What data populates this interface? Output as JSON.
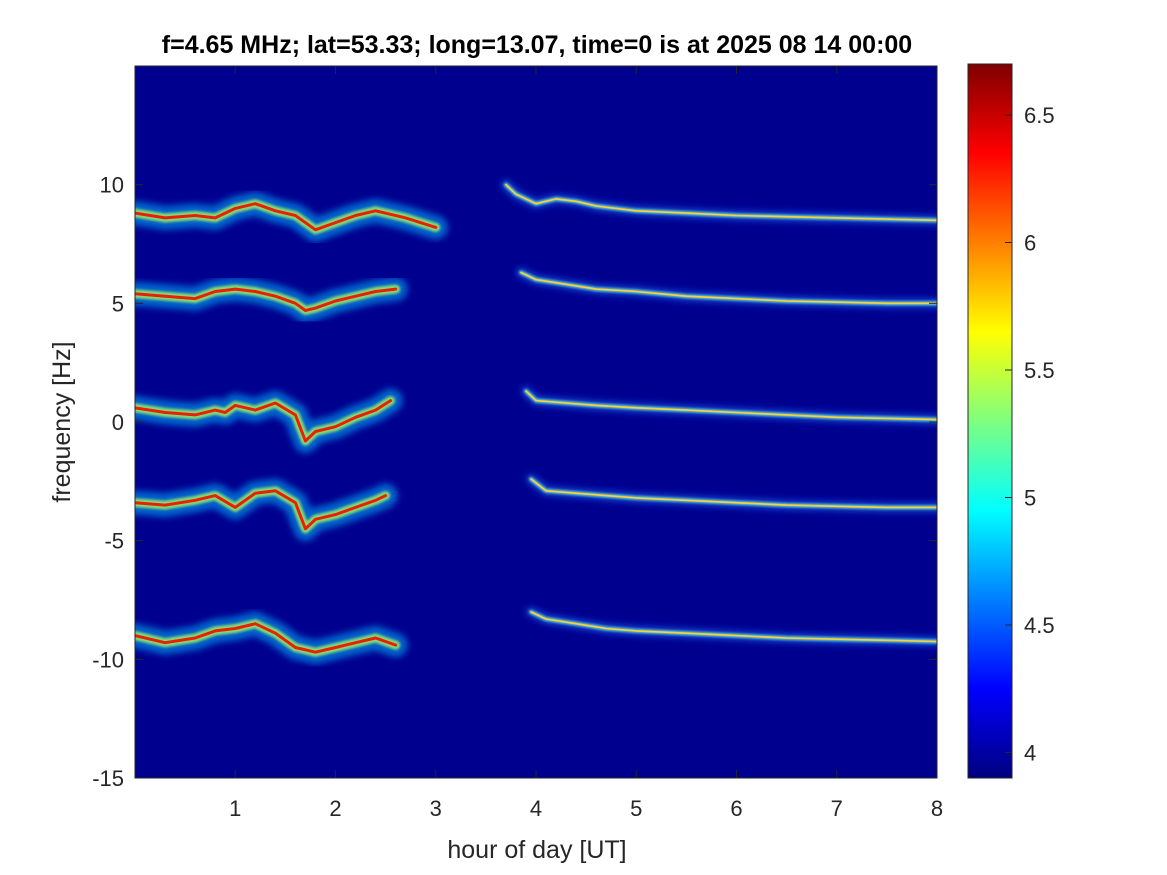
{
  "colors": {
    "background_low": "#00008f",
    "axes_box": "#262626",
    "colormap": [
      "#00007f",
      "#0000ff",
      "#007fff",
      "#00ffff",
      "#7fff7f",
      "#ffff00",
      "#ff7f00",
      "#ff0000",
      "#7f0000"
    ]
  },
  "chart_data": {
    "type": "heatmap",
    "title": "f=4.65 MHz;  lat=53.33; long=13.07, time=0 is at 2025 08 14 00:00",
    "xlabel": "hour of day [UT]",
    "ylabel": "frequency [Hz]",
    "xlim": [
      0,
      8
    ],
    "ylim": [
      -15,
      15
    ],
    "x_ticks": [
      "1",
      "2",
      "3",
      "4",
      "5",
      "6",
      "7",
      "8"
    ],
    "y_ticks": [
      "10",
      "5",
      "0",
      "-5",
      "-10",
      "-15"
    ],
    "colorbar": {
      "range": [
        3.9,
        6.7
      ],
      "ticks": [
        "6.5",
        "6",
        "5.5",
        "5",
        "4.5",
        "4"
      ]
    },
    "grid": false,
    "traces": [
      {
        "segment": "early",
        "x": [
          0.0,
          0.3,
          0.6,
          0.8,
          1.0,
          1.2,
          1.4,
          1.6,
          1.8,
          2.0,
          2.2,
          2.4,
          2.7,
          3.0
        ],
        "y": [
          8.8,
          8.6,
          8.7,
          8.6,
          9.0,
          9.2,
          8.9,
          8.7,
          8.1,
          8.4,
          8.7,
          8.9,
          8.6,
          8.2
        ]
      },
      {
        "segment": "early",
        "x": [
          0.0,
          0.3,
          0.6,
          0.8,
          1.0,
          1.2,
          1.4,
          1.6,
          1.7,
          1.8,
          2.0,
          2.2,
          2.4,
          2.6
        ],
        "y": [
          5.4,
          5.3,
          5.2,
          5.5,
          5.6,
          5.5,
          5.3,
          5.0,
          4.7,
          4.8,
          5.1,
          5.3,
          5.5,
          5.6
        ]
      },
      {
        "segment": "early",
        "x": [
          0.0,
          0.3,
          0.6,
          0.8,
          0.9,
          1.0,
          1.2,
          1.4,
          1.6,
          1.7,
          1.8,
          2.0,
          2.2,
          2.4,
          2.55
        ],
        "y": [
          0.6,
          0.4,
          0.3,
          0.5,
          0.4,
          0.7,
          0.5,
          0.8,
          0.3,
          -0.8,
          -0.4,
          -0.2,
          0.2,
          0.5,
          0.9
        ]
      },
      {
        "segment": "early",
        "x": [
          0.0,
          0.3,
          0.6,
          0.8,
          1.0,
          1.2,
          1.4,
          1.6,
          1.7,
          1.8,
          2.0,
          2.2,
          2.4,
          2.5
        ],
        "y": [
          -3.4,
          -3.5,
          -3.3,
          -3.1,
          -3.6,
          -3.0,
          -2.9,
          -3.4,
          -4.5,
          -4.1,
          -3.9,
          -3.6,
          -3.3,
          -3.1
        ]
      },
      {
        "segment": "early",
        "x": [
          0.0,
          0.3,
          0.6,
          0.8,
          1.0,
          1.2,
          1.4,
          1.6,
          1.8,
          2.0,
          2.2,
          2.4,
          2.6
        ],
        "y": [
          -9.0,
          -9.3,
          -9.1,
          -8.8,
          -8.7,
          -8.5,
          -8.9,
          -9.5,
          -9.7,
          -9.5,
          -9.3,
          -9.1,
          -9.4
        ]
      },
      {
        "segment": "late",
        "x": [
          3.7,
          3.8,
          4.0,
          4.2,
          4.4,
          4.6,
          5.0,
          5.5,
          6.0,
          6.5,
          7.0,
          7.5,
          8.0
        ],
        "y": [
          10.0,
          9.6,
          9.2,
          9.4,
          9.3,
          9.1,
          8.9,
          8.8,
          8.7,
          8.65,
          8.6,
          8.55,
          8.5
        ]
      },
      {
        "segment": "late",
        "x": [
          3.85,
          4.0,
          4.3,
          4.6,
          5.0,
          5.5,
          6.0,
          6.5,
          7.0,
          7.5,
          8.0
        ],
        "y": [
          6.3,
          6.0,
          5.8,
          5.6,
          5.5,
          5.3,
          5.2,
          5.1,
          5.05,
          5.0,
          5.0
        ]
      },
      {
        "segment": "late",
        "x": [
          3.9,
          4.0,
          4.3,
          4.6,
          5.0,
          5.5,
          6.0,
          6.5,
          7.0,
          7.5,
          8.0
        ],
        "y": [
          1.3,
          0.9,
          0.8,
          0.7,
          0.6,
          0.5,
          0.4,
          0.3,
          0.2,
          0.15,
          0.1
        ]
      },
      {
        "segment": "late",
        "x": [
          3.95,
          4.1,
          4.4,
          4.7,
          5.0,
          5.5,
          6.0,
          6.5,
          7.0,
          7.5,
          8.0
        ],
        "y": [
          -2.4,
          -2.9,
          -3.0,
          -3.1,
          -3.2,
          -3.3,
          -3.4,
          -3.5,
          -3.55,
          -3.6,
          -3.6
        ]
      },
      {
        "segment": "late",
        "x": [
          3.95,
          4.1,
          4.4,
          4.7,
          5.0,
          5.5,
          6.0,
          6.5,
          7.0,
          7.5,
          8.0
        ],
        "y": [
          -8.0,
          -8.3,
          -8.5,
          -8.7,
          -8.8,
          -8.9,
          -9.0,
          -9.1,
          -9.15,
          -9.2,
          -9.25
        ]
      }
    ]
  }
}
